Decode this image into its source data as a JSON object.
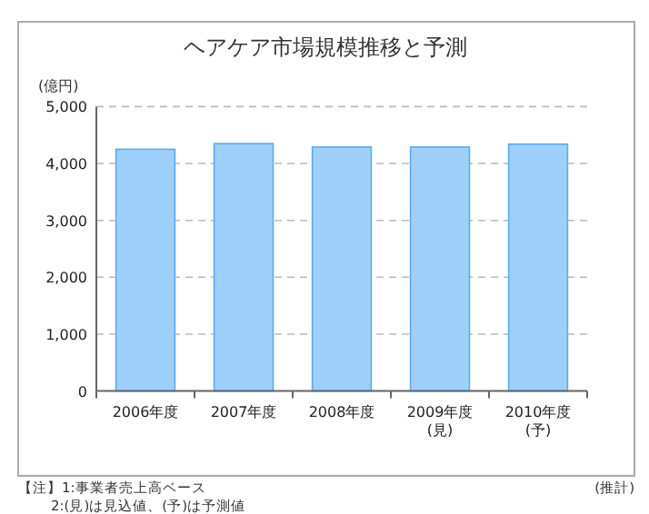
{
  "chart_data": {
    "type": "bar",
    "title": "ヘアケア市場規模推移と予測",
    "ylabel": "(億円)",
    "categories": [
      "2006年度",
      "2007年度",
      "2008年度",
      "2009年度\n(見)",
      "2010年度\n(予)"
    ],
    "values": [
      4250,
      4350,
      4290,
      4290,
      4340
    ],
    "color": "#9fd0fb",
    "ylim": [
      0,
      5000
    ],
    "yticks": [
      {
        "value": 0,
        "label": "0"
      },
      {
        "value": 1000,
        "label": "1,000"
      },
      {
        "value": 2000,
        "label": "2,000"
      },
      {
        "value": 3000,
        "label": "3,000"
      },
      {
        "value": 4000,
        "label": "4,000"
      },
      {
        "value": 5000,
        "label": "5,000"
      }
    ],
    "grid": "y",
    "annotations": [
      "【注】1:事業者売上高ベース",
      "2:(見)は見込値、(予)は予測値",
      "(推計)"
    ]
  }
}
